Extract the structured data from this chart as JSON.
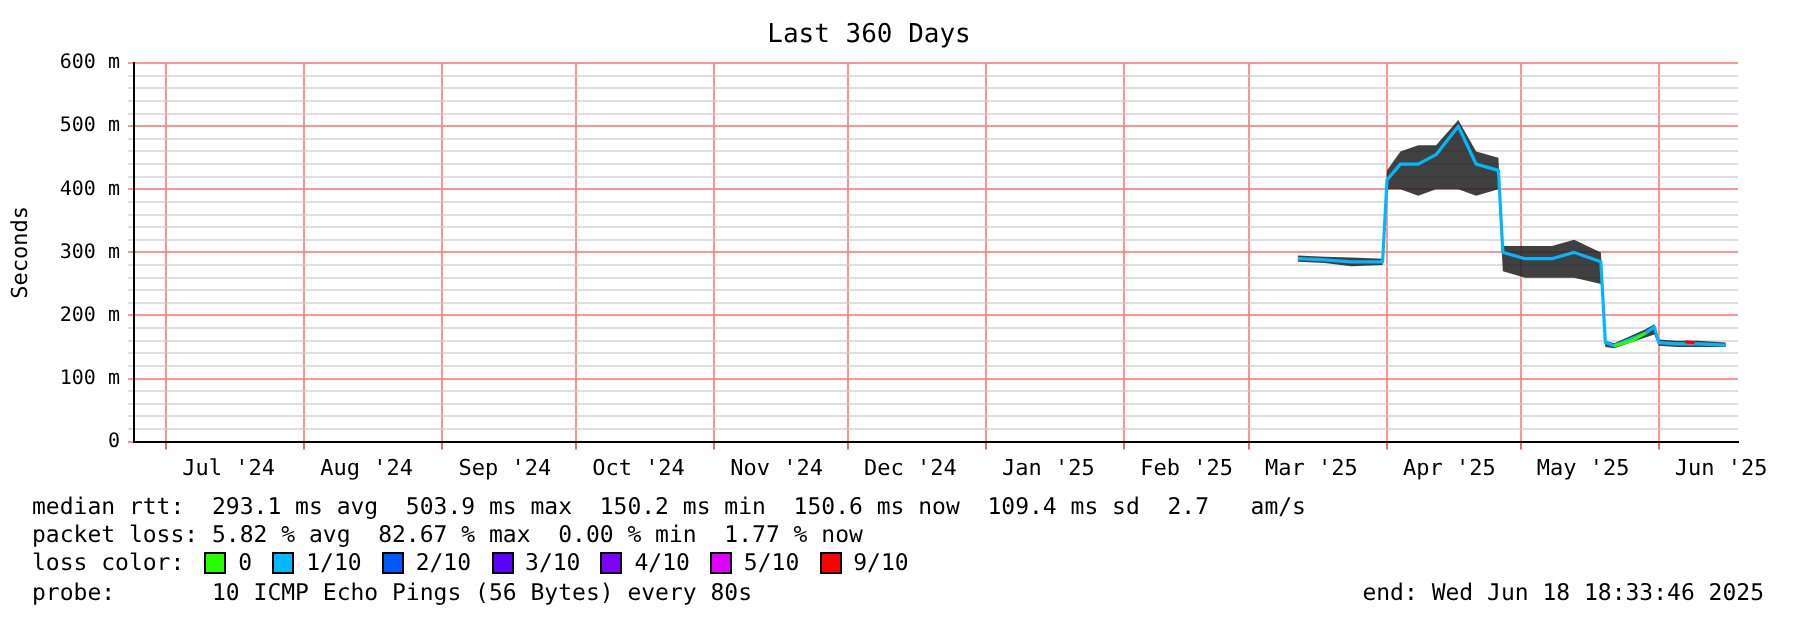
{
  "chart_data": {
    "type": "line",
    "title": "Last 360 Days",
    "ylabel": "Seconds",
    "legend_title": "loss color:",
    "legend": "bottom",
    "grid": true,
    "line_style": "solid",
    "marker": "none",
    "xlim": [
      "2024-06-23T18:33",
      "2025-06-18T18:33"
    ],
    "xticks": [
      {
        "value": "2024-07-01",
        "label": null
      },
      {
        "value": "2024-07-15",
        "label": "Jul '24"
      },
      {
        "value": "2024-08-01",
        "label": null
      },
      {
        "value": "2024-08-15",
        "label": "Aug '24"
      },
      {
        "value": "2024-09-01",
        "label": null
      },
      {
        "value": "2024-09-15",
        "label": "Sep '24"
      },
      {
        "value": "2024-10-01",
        "label": null
      },
      {
        "value": "2024-10-15",
        "label": "Oct '24"
      },
      {
        "value": "2024-11-01",
        "label": null
      },
      {
        "value": "2024-11-15",
        "label": "Nov '24"
      },
      {
        "value": "2024-12-01",
        "label": null
      },
      {
        "value": "2024-12-15",
        "label": "Dec '24"
      },
      {
        "value": "2025-01-01",
        "label": null
      },
      {
        "value": "2025-01-15",
        "label": "Jan '25"
      },
      {
        "value": "2025-02-01",
        "label": null
      },
      {
        "value": "2025-02-15",
        "label": "Feb '25"
      },
      {
        "value": "2025-03-01",
        "label": null
      },
      {
        "value": "2025-03-15",
        "label": "Mar '25"
      },
      {
        "value": "2025-04-01",
        "label": null
      },
      {
        "value": "2025-04-15",
        "label": "Apr '25"
      },
      {
        "value": "2025-05-01",
        "label": null
      },
      {
        "value": "2025-05-15",
        "label": "May '25"
      },
      {
        "value": "2025-06-01",
        "label": null
      },
      {
        "value": "2025-06-15",
        "label": "Jun '25"
      }
    ],
    "ylim": [
      0,
      600
    ],
    "yticks": [
      0,
      {
        "value": 20,
        "label": null
      },
      {
        "value": 40,
        "label": null
      },
      {
        "value": 60,
        "label": null
      },
      {
        "value": 80,
        "label": null
      },
      {
        "value": 100,
        "label": "100 m"
      },
      {
        "value": 120,
        "label": null
      },
      {
        "value": 140,
        "label": null
      },
      {
        "value": 160,
        "label": null
      },
      {
        "value": 180,
        "label": null
      },
      {
        "value": 200,
        "label": "200 m"
      },
      {
        "value": 220,
        "label": null
      },
      {
        "value": 240,
        "label": null
      },
      {
        "value": 260,
        "label": null
      },
      {
        "value": 280,
        "label": null
      },
      {
        "value": 300,
        "label": "300 m"
      },
      {
        "value": 320,
        "label": null
      },
      {
        "value": 340,
        "label": null
      },
      {
        "value": 360,
        "label": null
      },
      {
        "value": 380,
        "label": null
      },
      {
        "value": 400,
        "label": "400 m"
      },
      {
        "value": 420,
        "label": null
      },
      {
        "value": 440,
        "label": null
      },
      {
        "value": 460,
        "label": null
      },
      {
        "value": 480,
        "label": null
      },
      {
        "value": 500,
        "label": "500 m"
      },
      {
        "value": 520,
        "label": null
      },
      {
        "value": 540,
        "label": null
      },
      {
        "value": 560,
        "label": null
      },
      {
        "value": 580,
        "label": null
      },
      {
        "value": 600,
        "label": "600 m"
      }
    ],
    "series": [
      {
        "name": "0",
        "color": "#26ff00",
        "x": [
          "2025-05-22",
          "2025-05-26",
          "2025-05-29"
        ],
        "values": [
          152,
          160,
          172
        ]
      },
      {
        "name": "1/10",
        "color": "#00b8ff",
        "x": [
          "2025-03-12",
          "2025-03-18",
          "2025-03-24",
          "2025-03-31",
          "2025-04-01",
          "2025-04-04",
          "2025-04-08",
          "2025-04-12",
          "2025-04-17",
          "2025-04-21",
          "2025-04-26",
          "2025-04-27",
          "2025-05-02",
          "2025-05-08",
          "2025-05-13",
          "2025-05-19",
          "2025-05-20",
          "2025-05-22",
          "2025-05-29",
          "2025-05-31",
          "2025-06-01",
          "2025-06-05",
          "2025-06-10",
          "2025-06-16"
        ],
        "values": [
          290,
          288,
          285,
          285,
          415,
          440,
          440,
          455,
          500,
          440,
          430,
          300,
          290,
          290,
          300,
          285,
          157,
          152,
          172,
          182,
          157,
          155,
          155,
          153
        ],
        "lower": [
          285,
          283,
          278,
          280,
          400,
          400,
          390,
          400,
          400,
          390,
          400,
          270,
          260,
          260,
          260,
          250,
          150,
          148,
          165,
          170,
          152,
          150,
          150,
          150
        ],
        "upper": [
          295,
          293,
          292,
          290,
          430,
          460,
          470,
          470,
          510,
          460,
          450,
          310,
          310,
          310,
          320,
          300,
          160,
          156,
          178,
          186,
          162,
          160,
          160,
          157
        ]
      },
      {
        "name": "2/10",
        "color": "#0059ff"
      },
      {
        "name": "3/10",
        "color": "#5e00ff"
      },
      {
        "name": "4/10",
        "color": "#7e00ff"
      },
      {
        "name": "5/10",
        "color": "#dd00ff"
      },
      {
        "name": "9/10",
        "color": "#ff0000",
        "x": [
          "2025-06-07",
          "2025-06-09"
        ],
        "values": [
          158,
          157
        ]
      }
    ],
    "annotations": [
      "median rtt:  293.1 ms avg  503.9 ms max  150.2 ms min  150.6 ms now  109.4 ms sd  2.7   am/s",
      "packet loss: 5.82 % avg  82.67 % max  0.00 % min  1.77 % now",
      "probe:       10 ICMP Echo Pings (56 Bytes) every 80s",
      "end: Wed Jun 18 18:33:46 2025"
    ]
  }
}
